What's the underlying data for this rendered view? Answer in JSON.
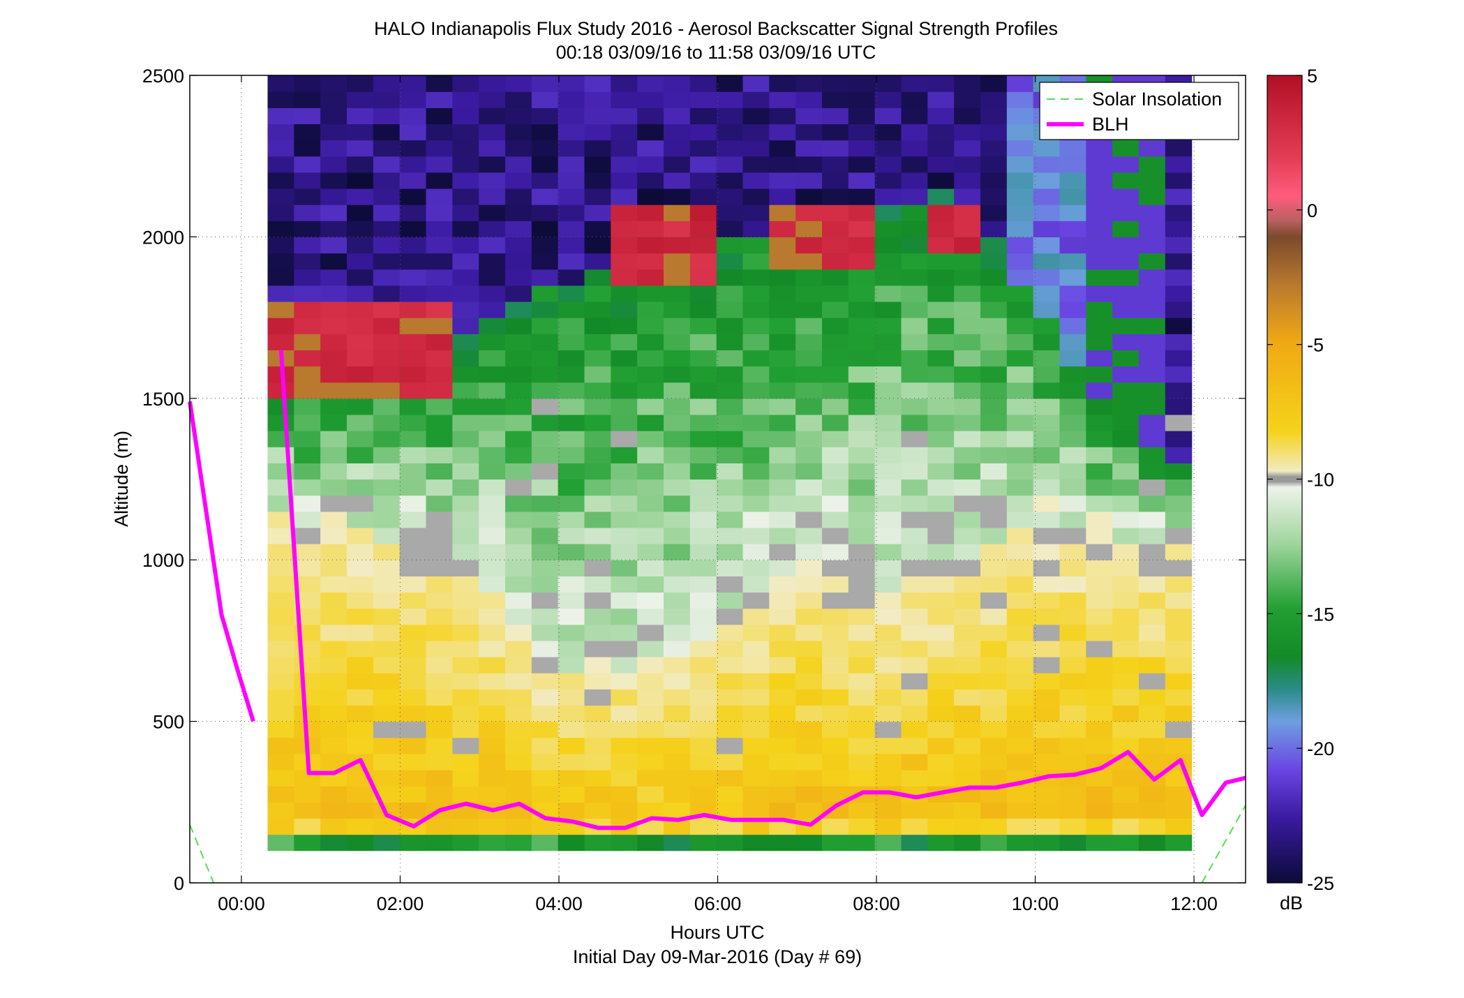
{
  "chart_data": {
    "type": "heatmap",
    "title": "HALO Indianapolis Flux Study 2016 - Aerosol Backscatter Signal Strength Profiles",
    "subtitle": "00:18 03/09/16 to 11:58 03/09/16  UTC",
    "xlabel": "Hours UTC",
    "xlabel2": "Initial Day 09-Mar-2016 (Day # 69)",
    "ylabel": "Altitude (m)",
    "x_unit": "hours UTC",
    "xlim": [
      -0.65,
      12.65
    ],
    "ylim": [
      0,
      2500
    ],
    "x_ticks": [
      0,
      2,
      4,
      6,
      8,
      10,
      12
    ],
    "x_tick_labels": [
      "00:00",
      "02:00",
      "04:00",
      "06:00",
      "08:00",
      "10:00",
      "12:00"
    ],
    "y_ticks": [
      0,
      500,
      1000,
      1500,
      2000,
      2500
    ],
    "y_tick_labels": [
      "0",
      "500",
      "1000",
      "1500",
      "2000",
      "2500"
    ],
    "grid": true,
    "colorbar": {
      "label": "dB",
      "range": [
        -25,
        5
      ],
      "ticks": [
        5,
        0,
        -5,
        -10,
        -15,
        -20,
        -25
      ],
      "tick_labels": [
        "5",
        "0",
        "-5",
        "-10",
        "-15",
        "-20",
        "-25"
      ]
    },
    "heatmap": {
      "x_start": 0.33,
      "x_end": 11.97,
      "n_columns": 35,
      "value_unit": "dB",
      "note": "Gate-by-gate values approximated by a generator script from the visible structure (green aerosol layer, yellow boundary layer, red cloud near 1500-1800 m early and near 1900-2000 m at 05:00-08:00, purple clear sky above)"
    },
    "series": [
      {
        "name": "Solar Insolation",
        "style": "dashed",
        "color": "#55dd55",
        "segments": [
          {
            "x": [
              -0.65,
              -0.35
            ],
            "y": [
              180,
              0
            ]
          },
          {
            "x": [
              12.1,
              12.65
            ],
            "y": [
              0,
              240
            ]
          }
        ]
      },
      {
        "name": "BLH",
        "style": "solid",
        "color": "#ff00ff",
        "segments": [
          {
            "x": [
              -0.65,
              -0.45,
              -0.25,
              -0.05,
              0.15
            ],
            "y": [
              1490,
              1160,
              830,
              660,
              500
            ]
          },
          {
            "x": [
              0.5,
              0.85,
              1.17,
              1.5,
              1.83,
              2.17,
              2.5,
              2.83,
              3.17,
              3.5,
              3.83,
              4.17,
              4.5,
              4.83,
              5.17,
              5.5,
              5.83,
              6.17,
              6.5,
              6.83,
              7.17,
              7.5,
              7.83,
              8.17,
              8.5,
              8.83,
              9.17,
              9.5,
              9.83,
              10.17,
              10.5,
              10.83,
              11.17,
              11.5,
              11.83,
              12.1,
              12.4,
              12.65
            ],
            "y": [
              1650,
              340,
              340,
              380,
              210,
              175,
              225,
              245,
              225,
              245,
              200,
              190,
              170,
              170,
              200,
              195,
              210,
              195,
              195,
              195,
              180,
              240,
              280,
              280,
              265,
              280,
              295,
              295,
              310,
              330,
              335,
              355,
              405,
              320,
              380,
              210,
              310,
              325
            ]
          }
        ]
      }
    ],
    "legend": {
      "position": "top-right",
      "entries": [
        "Solar Insolation",
        "BLH"
      ]
    }
  }
}
